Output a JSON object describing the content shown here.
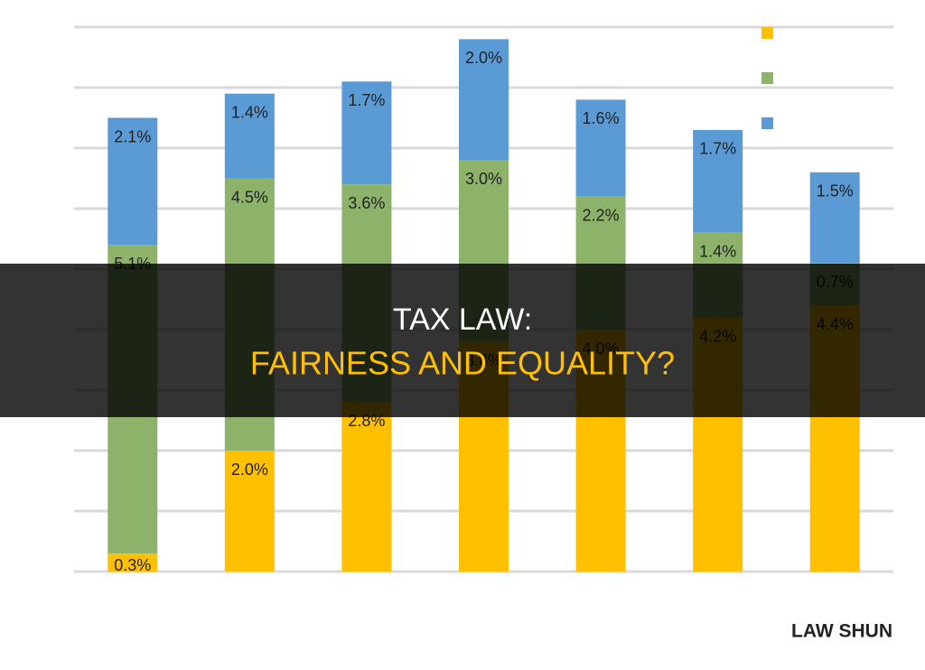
{
  "chart_data": {
    "type": "stacked_bar",
    "categories": [
      null,
      null,
      null,
      null,
      null,
      null,
      null
    ],
    "series": [
      {
        "color": "#ffc000",
        "values": [
          0.3,
          2.0,
          2.8,
          3.8,
          4.0,
          4.2,
          4.4
        ],
        "value_labels": [
          "0.3%",
          "2.0%",
          "2.8%",
          "3.8%",
          "4.0%",
          "4.2%",
          "4.4%"
        ]
      },
      {
        "color": "#8db36a",
        "values": [
          5.1,
          4.5,
          3.6,
          3.0,
          2.2,
          1.4,
          0.7
        ],
        "value_labels": [
          "5.1%",
          "4.5%",
          "3.6%",
          "3.0%",
          "2.2%",
          "1.4%",
          "0.7%"
        ]
      },
      {
        "color": "#5b9bd5",
        "values": [
          2.1,
          1.4,
          1.7,
          2.0,
          1.6,
          1.7,
          1.5
        ],
        "value_labels": [
          "2.1%",
          "1.4%",
          "1.7%",
          "2.0%",
          "1.6%",
          "1.7%",
          "1.5%"
        ]
      }
    ],
    "ylim": [
      0,
      9
    ],
    "yticks": [
      0,
      1,
      2,
      3,
      4,
      5,
      6,
      7,
      8,
      9
    ],
    "grid": true
  },
  "overlay_title": [
    "TAX LAW:",
    "FAIRNESS AND EQUALITY?"
  ],
  "watermark": "LAW SHUN"
}
